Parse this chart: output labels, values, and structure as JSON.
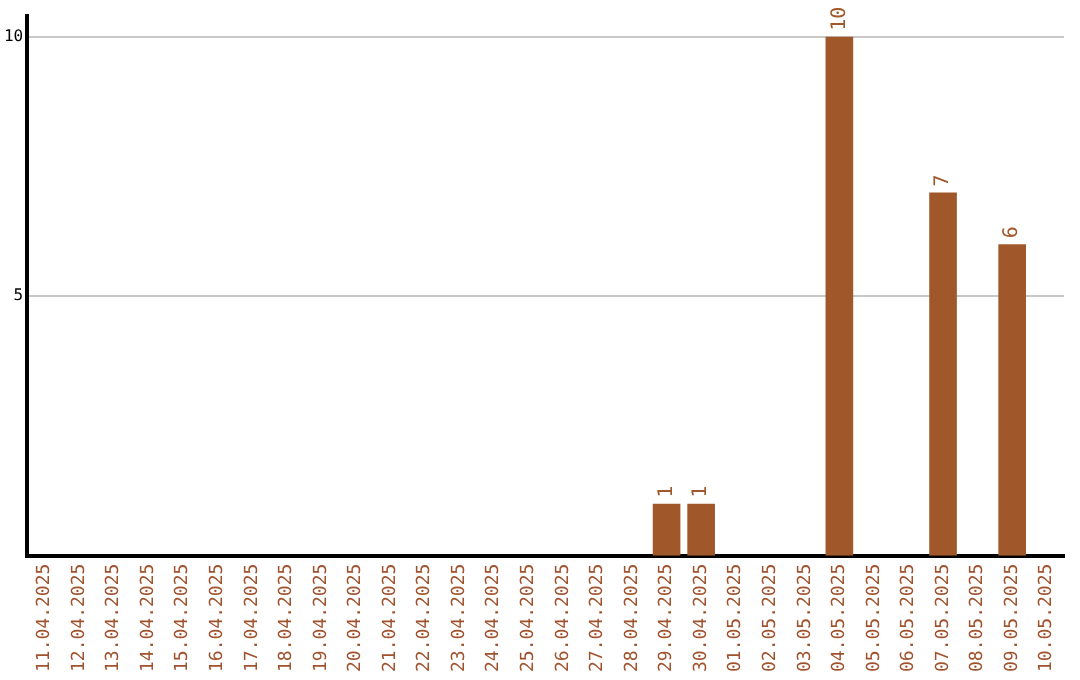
{
  "chart_data": {
    "type": "bar",
    "categories": [
      "11.04.2025",
      "12.04.2025",
      "13.04.2025",
      "14.04.2025",
      "15.04.2025",
      "16.04.2025",
      "17.04.2025",
      "18.04.2025",
      "19.04.2025",
      "20.04.2025",
      "21.04.2025",
      "22.04.2025",
      "23.04.2025",
      "24.04.2025",
      "25.04.2025",
      "26.04.2025",
      "27.04.2025",
      "28.04.2025",
      "29.04.2025",
      "30.04.2025",
      "01.05.2025",
      "02.05.2025",
      "03.05.2025",
      "04.05.2025",
      "05.05.2025",
      "06.05.2025",
      "07.05.2025",
      "08.05.2025",
      "09.05.2025",
      "10.05.2025"
    ],
    "values": [
      0,
      0,
      0,
      0,
      0,
      0,
      0,
      0,
      0,
      0,
      0,
      0,
      0,
      0,
      0,
      0,
      0,
      0,
      1,
      1,
      0,
      0,
      0,
      10,
      0,
      0,
      7,
      0,
      6,
      0
    ],
    "value_labels": [
      null,
      null,
      null,
      null,
      null,
      null,
      null,
      null,
      null,
      null,
      null,
      null,
      null,
      null,
      null,
      null,
      null,
      null,
      "1",
      "1",
      null,
      null,
      null,
      "10",
      null,
      null,
      "7",
      null,
      "6",
      null
    ],
    "color": "#a0582a",
    "ylim": [
      0,
      10.4
    ],
    "yticks": [
      5,
      10
    ],
    "grid": "y"
  }
}
